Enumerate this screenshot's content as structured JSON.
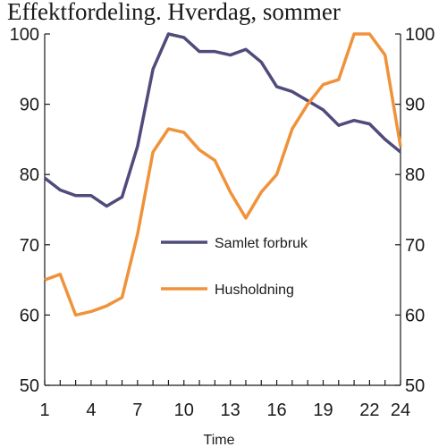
{
  "chart_data": {
    "type": "line",
    "title": "Effektfordeling. Hverdag, sommer",
    "xlabel": "Time",
    "ylabel": "",
    "x": [
      1,
      2,
      3,
      4,
      5,
      6,
      7,
      8,
      9,
      10,
      11,
      12,
      13,
      14,
      15,
      16,
      17,
      18,
      19,
      20,
      21,
      22,
      23,
      24
    ],
    "x_tick_labels": [
      "1",
      "4",
      "7",
      "10",
      "13",
      "16",
      "19",
      "22",
      "24"
    ],
    "ylim": [
      50,
      100
    ],
    "y_ticks": [
      50,
      60,
      70,
      80,
      90,
      100
    ],
    "y_tick_labels": [
      "50",
      "60",
      "70",
      "80",
      "90",
      "100"
    ],
    "y2_tick_labels": [
      "50",
      "60",
      "70",
      "80",
      "90",
      "100"
    ],
    "grid": false,
    "legend_position": "center",
    "series": [
      {
        "name": "Samlet forbruk",
        "color": "#4f4b7b",
        "values": [
          79.5,
          77.8,
          77.0,
          77.0,
          75.5,
          76.8,
          84.0,
          95.0,
          100.0,
          99.5,
          97.5,
          97.5,
          97.0,
          97.8,
          96.0,
          92.5,
          91.8,
          90.5,
          89.2,
          87.0,
          87.7,
          87.2,
          85.0,
          83.2
        ]
      },
      {
        "name": "Husholdning",
        "color": "#f0923a",
        "values": [
          65.0,
          65.8,
          60.0,
          60.5,
          61.3,
          62.5,
          71.5,
          83.2,
          86.5,
          86.0,
          83.5,
          82.0,
          77.5,
          73.8,
          77.5,
          80.0,
          86.5,
          90.0,
          92.8,
          93.5,
          100.0,
          100.0,
          97.0,
          84.0
        ]
      }
    ]
  }
}
